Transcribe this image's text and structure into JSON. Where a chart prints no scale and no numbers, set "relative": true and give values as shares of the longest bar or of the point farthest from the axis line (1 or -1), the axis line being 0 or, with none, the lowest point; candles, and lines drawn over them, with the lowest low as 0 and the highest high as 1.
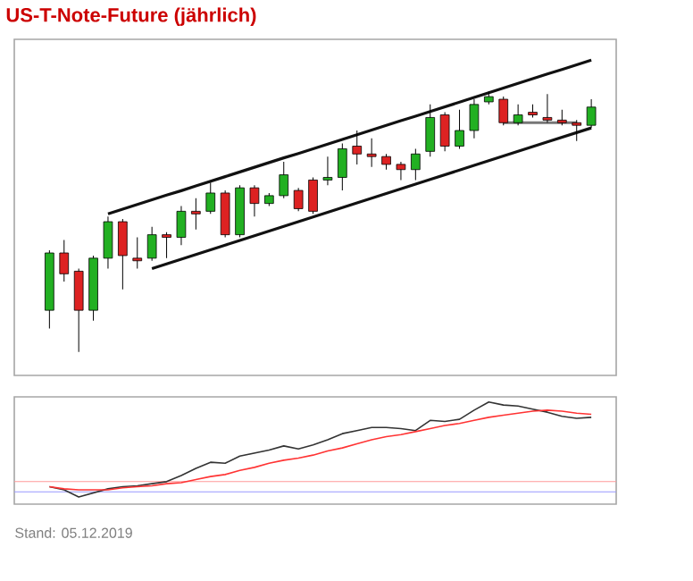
{
  "chart_data": [
    {
      "type": "candlestick",
      "title": "US-T-Note-Future (jährlich)",
      "relative": true,
      "tick_labels": false,
      "categories": [
        null,
        null,
        null,
        null,
        null,
        null,
        null,
        null,
        null,
        null,
        null,
        null,
        null,
        null,
        null,
        null,
        null,
        null,
        null,
        null,
        null,
        null,
        null,
        null,
        null,
        null,
        null,
        null,
        null,
        null,
        null,
        null,
        null,
        null,
        null,
        null,
        null,
        null
      ],
      "ohlc": [
        [
          0.16,
          0.39,
          0.09,
          0.38
        ],
        [
          0.38,
          0.43,
          0.27,
          0.3
        ],
        [
          0.31,
          0.32,
          0,
          0.16
        ],
        [
          0.16,
          0.37,
          0.12,
          0.36
        ],
        [
          0.36,
          0.52,
          0.32,
          0.5
        ],
        [
          0.5,
          0.51,
          0.24,
          0.37
        ],
        [
          0.36,
          0.44,
          0.32,
          0.35
        ],
        [
          0.36,
          0.48,
          0.35,
          0.45
        ],
        [
          0.45,
          0.46,
          0.36,
          0.44
        ],
        [
          0.44,
          0.56,
          0.41,
          0.54
        ],
        [
          0.54,
          0.59,
          0.47,
          0.53
        ],
        [
          0.54,
          0.65,
          0.53,
          0.61
        ],
        [
          0.61,
          0.62,
          0.44,
          0.45
        ],
        [
          0.45,
          0.64,
          0.44,
          0.63
        ],
        [
          0.63,
          0.64,
          0.52,
          0.57
        ],
        [
          0.57,
          0.61,
          0.56,
          0.6
        ],
        [
          0.6,
          0.73,
          0.59,
          0.68
        ],
        [
          0.62,
          0.63,
          0.54,
          0.55
        ],
        [
          0.66,
          0.67,
          0.53,
          0.54
        ],
        [
          0.66,
          0.75,
          0.64,
          0.67
        ],
        [
          0.67,
          0.8,
          0.62,
          0.78
        ],
        [
          0.79,
          0.85,
          0.72,
          0.76
        ],
        [
          0.76,
          0.82,
          0.71,
          0.75
        ],
        [
          0.75,
          0.76,
          0.7,
          0.72
        ],
        [
          0.72,
          0.73,
          0.66,
          0.7
        ],
        [
          0.7,
          0.78,
          0.66,
          0.76
        ],
        [
          0.77,
          0.95,
          0.75,
          0.9
        ],
        [
          0.91,
          0.92,
          0.77,
          0.79
        ],
        [
          0.79,
          0.93,
          0.78,
          0.85
        ],
        [
          0.85,
          0.97,
          0.82,
          0.95
        ],
        [
          0.96,
          1,
          0.95,
          0.98
        ],
        [
          0.97,
          0.98,
          0.87,
          0.88
        ],
        [
          0.88,
          0.95,
          0.87,
          0.91
        ],
        [
          0.92,
          0.95,
          0.9,
          0.91
        ],
        [
          0.9,
          0.99,
          0.88,
          0.89
        ],
        [
          0.89,
          0.93,
          0.87,
          0.88
        ],
        [
          0.88,
          0.89,
          0.81,
          0.87
        ],
        [
          0.87,
          0.97,
          0.86,
          0.94
        ]
      ],
      "colors": [
        "#22b022",
        "#dd2222",
        "#dd2222",
        "#22b022",
        "#22b022",
        "#dd2222",
        "#dd2222",
        "#22b022",
        "#dd2222",
        "#22b022",
        "#dd2222",
        "#22b022",
        "#dd2222",
        "#22b022",
        "#dd2222",
        "#22b022",
        "#22b022",
        "#dd2222",
        "#dd2222",
        "#22b022",
        "#22b022",
        "#dd2222",
        "#dd2222",
        "#dd2222",
        "#dd2222",
        "#22b022",
        "#22b022",
        "#dd2222",
        "#22b022",
        "#22b022",
        "#22b022",
        "#dd2222",
        "#22b022",
        "#dd2222",
        "#dd2222",
        "#dd2222",
        "#dd2222",
        "#22b022"
      ],
      "series": [
        {
          "type": "line",
          "color": "#111111",
          "values": [
            null,
            null,
            null,
            null,
            0.53,
            0.548,
            0.566,
            0.584,
            0.602,
            0.619,
            0.637,
            0.655,
            0.673,
            0.691,
            0.709,
            0.727,
            0.745,
            0.762,
            0.78,
            0.798,
            0.816,
            0.834,
            0.852,
            0.87,
            0.888,
            0.905,
            0.923,
            0.941,
            0.959,
            0.977,
            0.995,
            1.013,
            1.031,
            1.049,
            1.067,
            1.084,
            1.102,
            1.12
          ]
        },
        {
          "type": "line",
          "color": "#111111",
          "values": [
            null,
            null,
            null,
            null,
            null,
            null,
            null,
            0.32,
            0.338,
            0.356,
            0.374,
            0.392,
            0.41,
            0.428,
            0.446,
            0.464,
            0.482,
            0.5,
            0.518,
            0.536,
            0.554,
            0.572,
            0.59,
            0.608,
            0.626,
            0.644,
            0.662,
            0.68,
            0.698,
            0.716,
            0.734,
            0.752,
            0.77,
            0.788,
            0.806,
            0.824,
            0.842,
            0.86
          ]
        },
        {
          "type": "line",
          "color": "#777777",
          "values": [
            null,
            null,
            null,
            null,
            null,
            null,
            null,
            null,
            null,
            null,
            null,
            null,
            null,
            null,
            null,
            null,
            null,
            null,
            null,
            null,
            null,
            null,
            null,
            null,
            null,
            null,
            null,
            null,
            null,
            null,
            null,
            0.88,
            0.88,
            0.88,
            0.88,
            0.88,
            0.88,
            null
          ]
        }
      ]
    },
    {
      "type": "line",
      "relative": true,
      "tick_labels": false,
      "categories": [
        null,
        null,
        null,
        null,
        null,
        null,
        null,
        null,
        null,
        null,
        null,
        null,
        null,
        null,
        null,
        null,
        null,
        null,
        null,
        null,
        null,
        null,
        null,
        null,
        null,
        null,
        null,
        null,
        null,
        null,
        null,
        null,
        null,
        null,
        null,
        null,
        null,
        null
      ],
      "series": [
        {
          "color": "#333333",
          "values": [
            0.17,
            0.14,
            0.07,
            0.11,
            0.15,
            0.17,
            0.18,
            0.2,
            0.22,
            0.28,
            0.35,
            0.41,
            0.4,
            0.47,
            0.5,
            0.53,
            0.57,
            0.54,
            0.58,
            0.63,
            0.69,
            0.72,
            0.75,
            0.75,
            0.74,
            0.72,
            0.82,
            0.81,
            0.83,
            0.92,
            1,
            0.97,
            0.96,
            0.93,
            0.9,
            0.86,
            0.84,
            0.85
          ]
        },
        {
          "color": "#ff3333",
          "values": [
            0.17,
            0.15,
            0.14,
            0.14,
            0.14,
            0.16,
            0.17,
            0.18,
            0.2,
            0.21,
            0.24,
            0.27,
            0.29,
            0.33,
            0.36,
            0.4,
            0.43,
            0.45,
            0.48,
            0.52,
            0.55,
            0.59,
            0.63,
            0.66,
            0.68,
            0.71,
            0.74,
            0.77,
            0.79,
            0.82,
            0.85,
            0.87,
            0.89,
            0.91,
            0.92,
            0.91,
            0.89,
            0.88
          ]
        }
      ],
      "ref_lines": [
        {
          "axis": "y",
          "value": 0.22,
          "color": "#ff9999"
        },
        {
          "axis": "y",
          "value": 0.12,
          "color": "#9999ff"
        }
      ],
      "annotations": [
        "Stand: 05.12.2019"
      ]
    }
  ]
}
